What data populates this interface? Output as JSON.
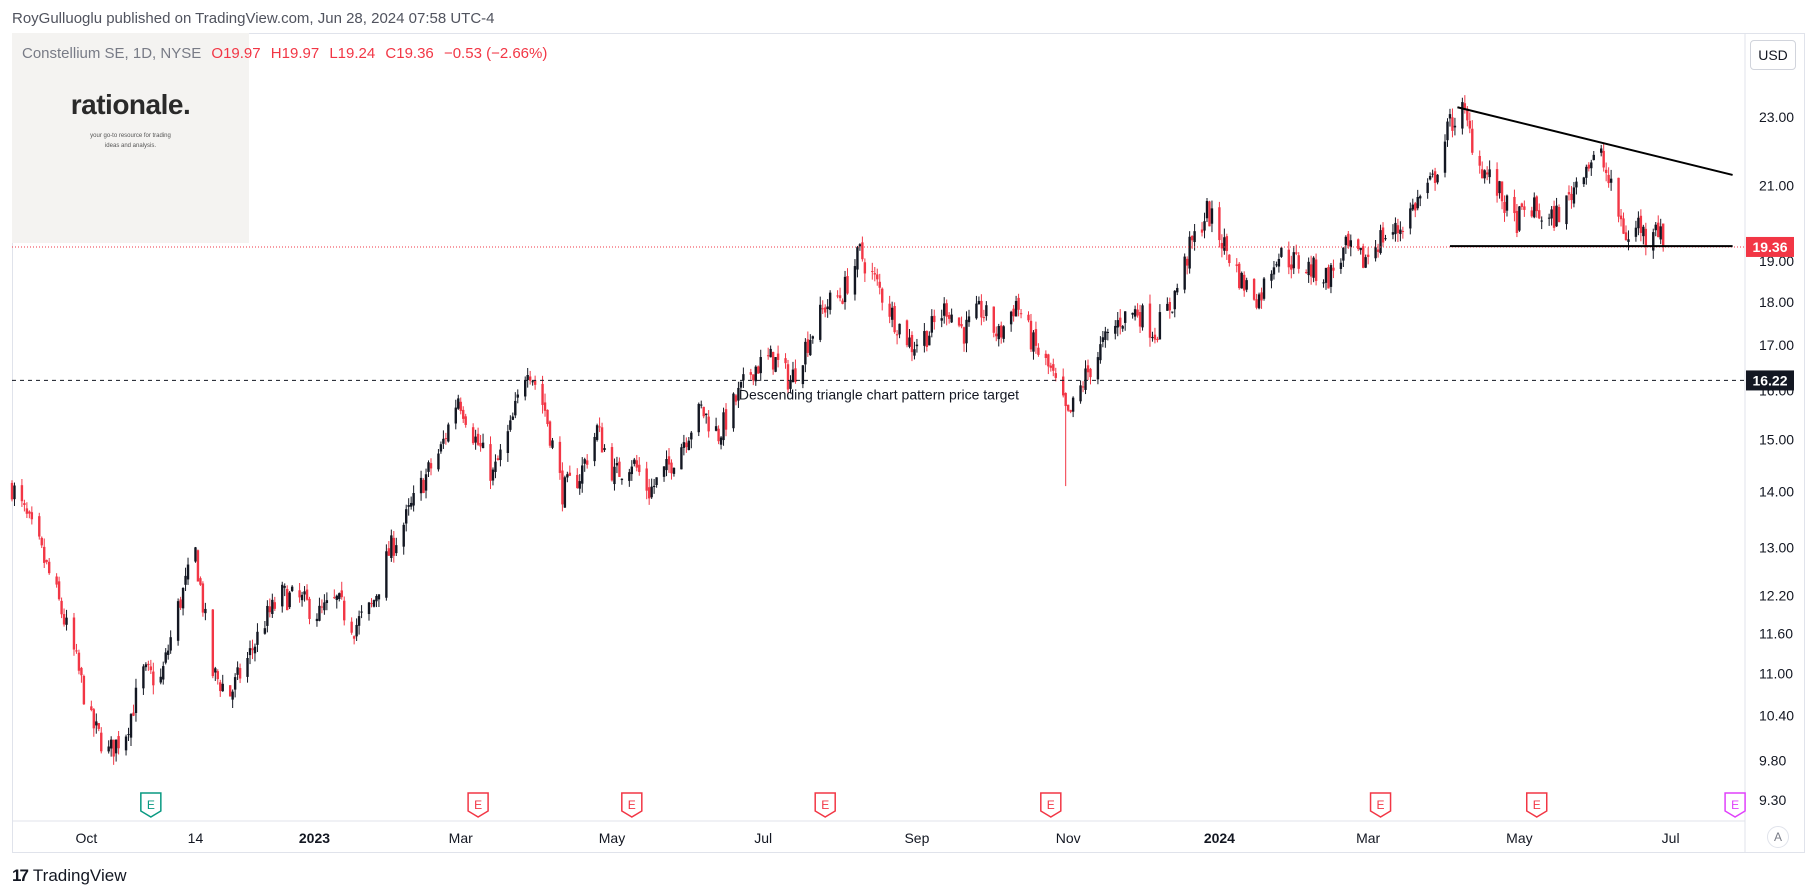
{
  "header": {
    "published_line": "RoyGulluoglu published on TradingView.com, Jun 28, 2024 07:58 UTC-4"
  },
  "symbol": {
    "name": "Constellium SE, 1D, NYSE",
    "open": "O19.97",
    "high": "H19.97",
    "low": "L19.24",
    "close": "C19.36",
    "change": "−0.53 (−2.66%)"
  },
  "logo": {
    "title": "rationale.",
    "subtitle_line1": "your go-to resource for trading",
    "subtitle_line2": "ideas and analysis."
  },
  "currency_label": "USD",
  "auto_label": "A",
  "footer": {
    "brand": "TradingView",
    "icon_text": "17"
  },
  "colors": {
    "up": "#131722",
    "down": "#f23645",
    "price_label": "#f23645",
    "target_label": "#131722",
    "earnings_green": "#089981",
    "earnings_red": "#f23645",
    "earnings_purple": "#e040fb"
  },
  "chart_data": {
    "type": "candlestick",
    "scale": "log",
    "ylim": [
      9.3,
      23.6
    ],
    "y_ticks": [
      "23.00",
      "21.00",
      "19.00",
      "18.00",
      "17.00",
      "16.00",
      "15.00",
      "14.00",
      "13.00",
      "12.20",
      "11.60",
      "11.00",
      "10.40",
      "9.80",
      "9.30"
    ],
    "x_labels": [
      {
        "label": "Oct",
        "bold": false
      },
      {
        "label": "14",
        "bold": false
      },
      {
        "label": "2023",
        "bold": true
      },
      {
        "label": "Mar",
        "bold": false
      },
      {
        "label": "May",
        "bold": false
      },
      {
        "label": "Jul",
        "bold": false
      },
      {
        "label": "Sep",
        "bold": false
      },
      {
        "label": "Nov",
        "bold": false
      },
      {
        "label": "2024",
        "bold": true
      },
      {
        "label": "Mar",
        "bold": false
      },
      {
        "label": "May",
        "bold": false
      },
      {
        "label": "Jul",
        "bold": false
      }
    ],
    "x_label_dates": [
      "2022-10-01",
      "2022-11-14",
      "2023-01-01",
      "2023-03-01",
      "2023-05-01",
      "2023-07-01",
      "2023-09-01",
      "2023-11-01",
      "2024-01-01",
      "2024-03-01",
      "2024-05-01",
      "2024-07-01"
    ],
    "date_range": [
      "2022-09-01",
      "2024-07-31"
    ],
    "close_path": [
      [
        "2022-09-01",
        14.1
      ],
      [
        "2022-09-06",
        13.6
      ],
      [
        "2022-09-12",
        13.0
      ],
      [
        "2022-09-19",
        12.2
      ],
      [
        "2022-09-26",
        11.3
      ],
      [
        "2022-10-03",
        10.3
      ],
      [
        "2022-10-10",
        9.9
      ],
      [
        "2022-10-17",
        10.2
      ],
      [
        "2022-10-24",
        11.0
      ],
      [
        "2022-10-31",
        10.9
      ],
      [
        "2022-11-07",
        12.0
      ],
      [
        "2022-11-14",
        12.9
      ],
      [
        "2022-11-21",
        11.0
      ],
      [
        "2022-11-28",
        10.7
      ],
      [
        "2022-12-05",
        11.2
      ],
      [
        "2022-12-12",
        11.8
      ],
      [
        "2022-12-19",
        12.2
      ],
      [
        "2022-12-27",
        12.1
      ],
      [
        "2023-01-03",
        11.9
      ],
      [
        "2023-01-10",
        12.1
      ],
      [
        "2023-01-17",
        11.7
      ],
      [
        "2023-01-24",
        12.0
      ],
      [
        "2023-01-31",
        12.9
      ],
      [
        "2023-02-07",
        13.5
      ],
      [
        "2023-02-14",
        14.2
      ],
      [
        "2023-02-21",
        14.8
      ],
      [
        "2023-02-28",
        15.9
      ],
      [
        "2023-03-07",
        15.0
      ],
      [
        "2023-03-14",
        14.3
      ],
      [
        "2023-03-21",
        15.2
      ],
      [
        "2023-03-28",
        16.6
      ],
      [
        "2023-04-04",
        15.6
      ],
      [
        "2023-04-11",
        14.0
      ],
      [
        "2023-04-18",
        14.3
      ],
      [
        "2023-04-25",
        15.2
      ],
      [
        "2023-05-02",
        14.3
      ],
      [
        "2023-05-09",
        14.6
      ],
      [
        "2023-05-16",
        14.0
      ],
      [
        "2023-05-23",
        14.4
      ],
      [
        "2023-05-30",
        15.0
      ],
      [
        "2023-06-06",
        15.6
      ],
      [
        "2023-06-13",
        15.1
      ],
      [
        "2023-06-20",
        15.8
      ],
      [
        "2023-06-27",
        16.5
      ],
      [
        "2023-07-05",
        16.7
      ],
      [
        "2023-07-12",
        16.2
      ],
      [
        "2023-07-19",
        17.1
      ],
      [
        "2023-07-26",
        17.9
      ],
      [
        "2023-08-02",
        18.2
      ],
      [
        "2023-08-09",
        19.2
      ],
      [
        "2023-08-16",
        18.4
      ],
      [
        "2023-08-23",
        17.6
      ],
      [
        "2023-08-30",
        17.0
      ],
      [
        "2023-09-06",
        17.3
      ],
      [
        "2023-09-13",
        17.9
      ],
      [
        "2023-09-20",
        17.3
      ],
      [
        "2023-09-27",
        17.8
      ],
      [
        "2023-10-04",
        17.2
      ],
      [
        "2023-10-11",
        18.0
      ],
      [
        "2023-10-18",
        17.0
      ],
      [
        "2023-10-25",
        16.4
      ],
      [
        "2023-11-01",
        15.4
      ],
      [
        "2023-11-08",
        16.3
      ],
      [
        "2023-11-15",
        17.0
      ],
      [
        "2023-11-22",
        17.6
      ],
      [
        "2023-11-29",
        17.8
      ],
      [
        "2023-12-06",
        17.3
      ],
      [
        "2023-12-13",
        18.0
      ],
      [
        "2023-12-20",
        19.3
      ],
      [
        "2023-12-27",
        20.3
      ],
      [
        "2024-01-03",
        19.4
      ],
      [
        "2024-01-10",
        18.5
      ],
      [
        "2024-01-17",
        18.1
      ],
      [
        "2024-01-24",
        19.2
      ],
      [
        "2024-01-31",
        19.0
      ],
      [
        "2024-02-07",
        18.8
      ],
      [
        "2024-02-14",
        18.6
      ],
      [
        "2024-02-21",
        19.3
      ],
      [
        "2024-02-28",
        19.0
      ],
      [
        "2024-03-06",
        19.6
      ],
      [
        "2024-03-13",
        19.8
      ],
      [
        "2024-03-20",
        20.5
      ],
      [
        "2024-03-27",
        21.1
      ],
      [
        "2024-04-03",
        22.8
      ],
      [
        "2024-04-08",
        23.2
      ],
      [
        "2024-04-15",
        21.6
      ],
      [
        "2024-04-22",
        20.9
      ],
      [
        "2024-04-29",
        20.0
      ],
      [
        "2024-05-06",
        20.4
      ],
      [
        "2024-05-13",
        20.0
      ],
      [
        "2024-05-20",
        20.5
      ],
      [
        "2024-05-27",
        21.6
      ],
      [
        "2024-06-03",
        21.8
      ],
      [
        "2024-06-10",
        20.2
      ],
      [
        "2024-06-14",
        19.5
      ],
      [
        "2024-06-18",
        20.0
      ],
      [
        "2024-06-21",
        19.6
      ],
      [
        "2024-06-25",
        20.1
      ],
      [
        "2024-06-28",
        19.36
      ]
    ],
    "wick_outliers": [
      [
        "2023-10-31",
        14.1
      ]
    ],
    "last_price": {
      "value": 19.36,
      "label": "19.36"
    },
    "target_line": {
      "value": 16.22,
      "label": "16.22",
      "annotation": "Descending triangle chart pattern price target"
    },
    "triangle": {
      "upper": {
        "from": [
          "2024-04-06",
          23.3
        ],
        "to": [
          "2024-07-26",
          21.3
        ]
      },
      "lower": {
        "from": [
          "2024-04-03",
          19.38
        ],
        "to": [
          "2024-07-26",
          19.38
        ]
      }
    },
    "earnings_dates": [
      {
        "date": "2022-10-27",
        "style": "green"
      },
      {
        "date": "2023-03-08",
        "style": "red"
      },
      {
        "date": "2023-05-09",
        "style": "red"
      },
      {
        "date": "2023-07-26",
        "style": "red"
      },
      {
        "date": "2023-10-25",
        "style": "red"
      },
      {
        "date": "2024-03-06",
        "style": "red"
      },
      {
        "date": "2024-05-08",
        "style": "red"
      },
      {
        "date": "2024-07-27",
        "style": "purple"
      }
    ],
    "earnings_glyph": "E"
  }
}
